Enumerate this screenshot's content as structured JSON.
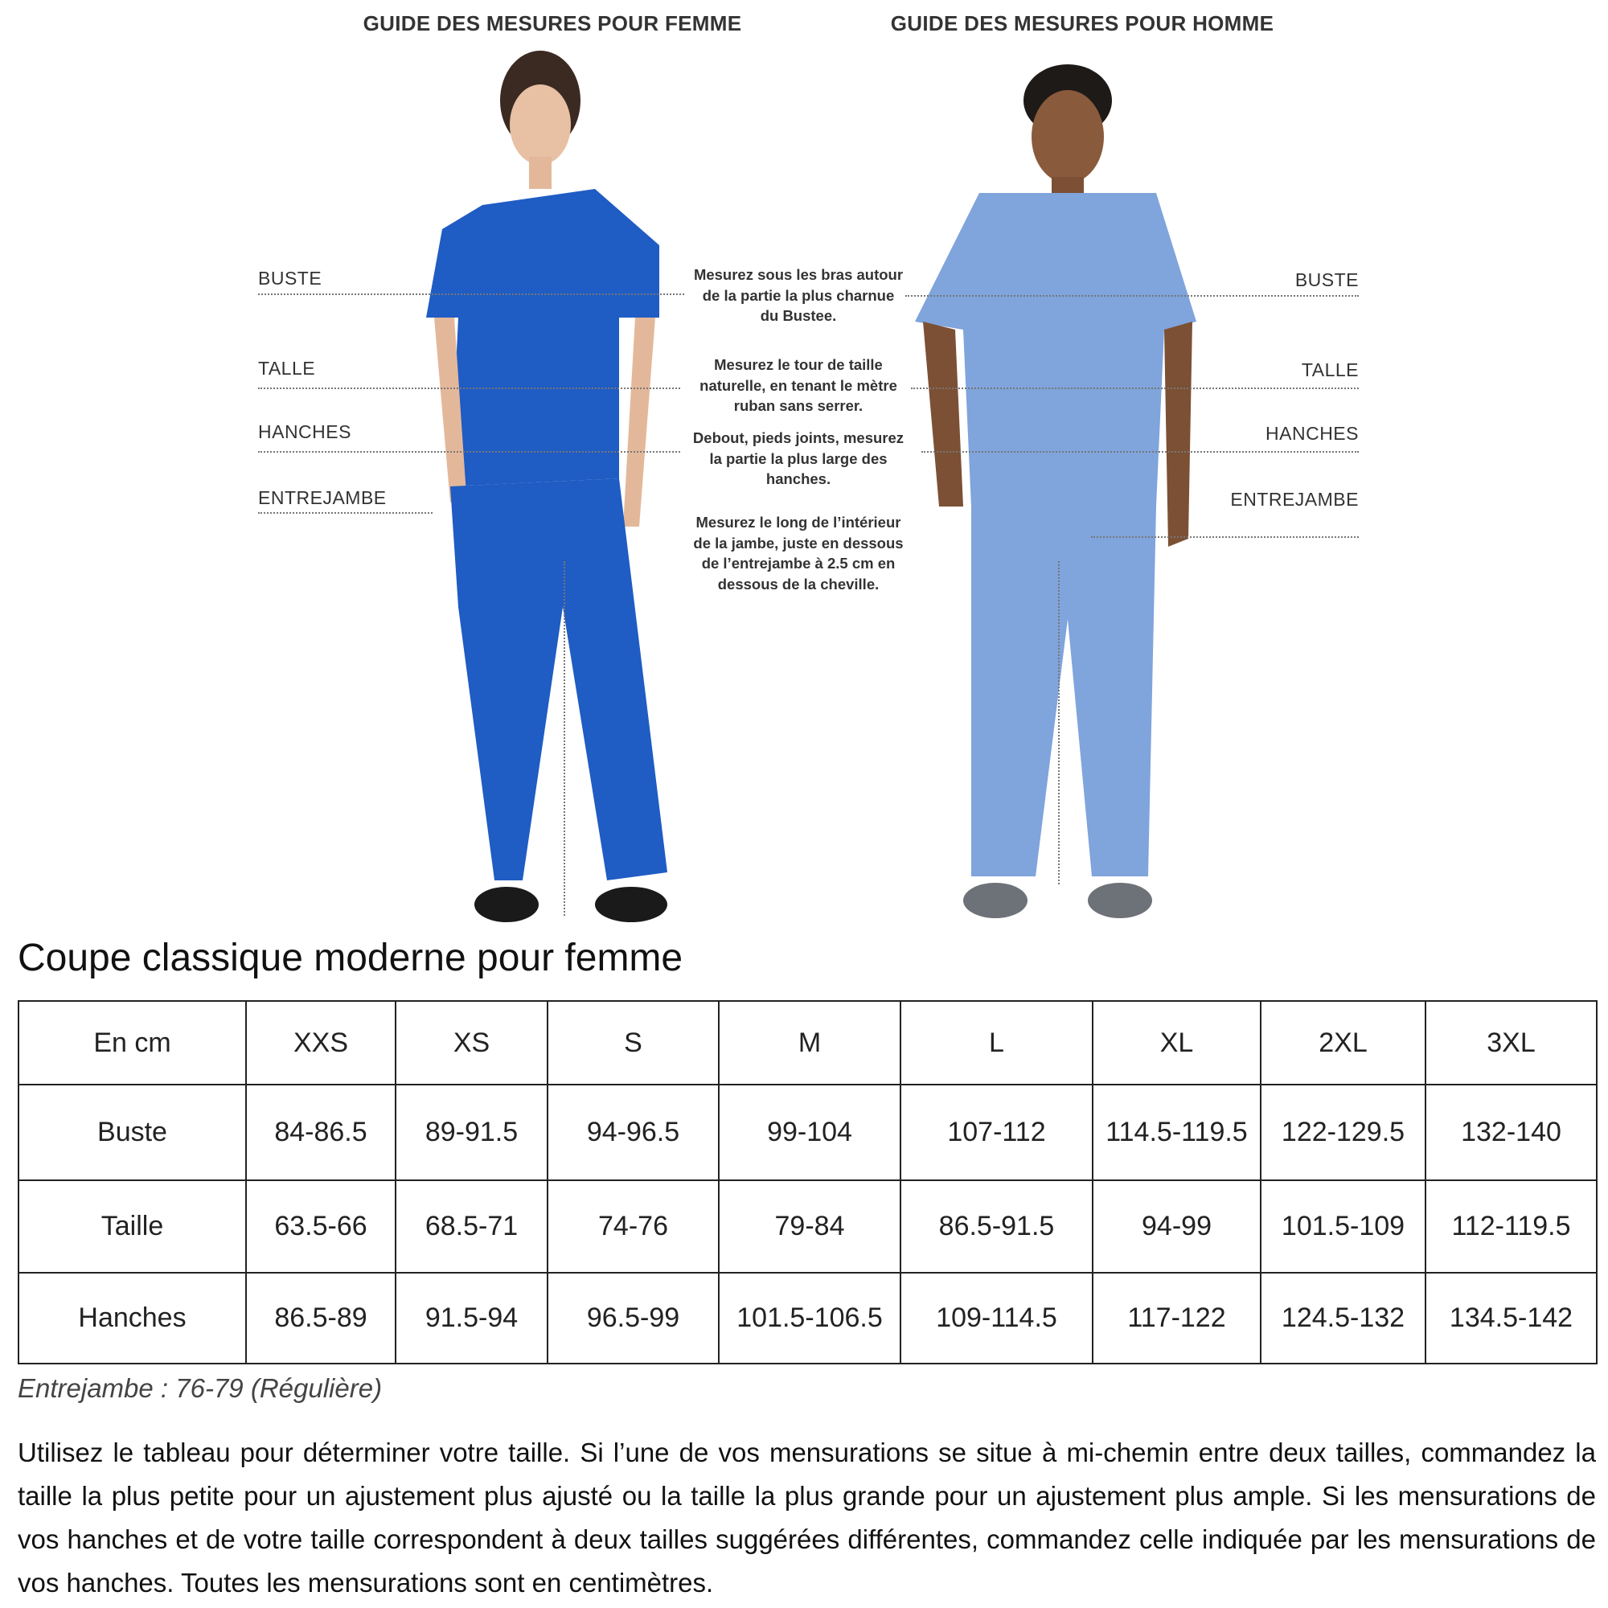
{
  "guide": {
    "female_title": "GUIDE DES MESURES POUR FEMME",
    "male_title": "GUIDE DES MESURES POUR HOMME",
    "labels": {
      "bust": "BUSTE",
      "waist": "TALLE",
      "hips": "HANCHES",
      "inseam": "ENTREJAMBE"
    },
    "instructions": [
      [
        "Mesurez sous les bras autour",
        "de la partie la plus charnue",
        "du Bustee."
      ],
      [
        "Mesurez le tour de taille",
        "naturelle, en tenant le mètre",
        "ruban sans serrer."
      ],
      [
        "Debout, pieds joints, mesurez",
        "la partie la plus large des",
        "hanches."
      ],
      [
        "Mesurez le long de l’intérieur",
        "de la jambe, juste en dessous",
        "de l’entrejambe à 2.5 cm en",
        "dessous de la cheville."
      ]
    ],
    "colors": {
      "female_scrubs": "#1f5cc4",
      "male_scrubs": "#80a4dc"
    }
  },
  "section_title": "Coupe classique moderne pour femme",
  "table": {
    "header": [
      "En cm",
      "XXS",
      "XS",
      "S",
      "M",
      "L",
      "XL",
      "2XL",
      "3XL"
    ],
    "rows": [
      [
        "Buste",
        "84-86.5",
        "89-91.5",
        "94-96.5",
        "99-104",
        "107-112",
        "114.5-119.5",
        "122-129.5",
        "132-140"
      ],
      [
        "Taille",
        "63.5-66",
        "68.5-71",
        "74-76",
        "79-84",
        "86.5-91.5",
        "94-99",
        "101.5-109",
        "112-119.5"
      ],
      [
        "Hanches",
        "86.5-89",
        "91.5-94",
        "96.5-99",
        "101.5-106.5",
        "109-114.5",
        "117-122",
        "124.5-132",
        "134.5-142"
      ]
    ]
  },
  "inseam_note": "Entrejambe : 76-79 (Régulière)",
  "paragraph": [
    "Utilisez le tableau pour déterminer votre taille. Si l’une de vos mensurations se situe à mi-chemin entre deux tailles, commandez la",
    "taille la plus petite pour un ajustement plus ajusté ou la taille la plus grande pour un ajustement plus ample. Si les mensurations de",
    "vos hanches et de votre taille correspondent à deux tailles suggérées différentes, commandez celle indiquée par les mensurations de",
    "vos hanches. Toutes les mensurations sont en centimètres."
  ]
}
